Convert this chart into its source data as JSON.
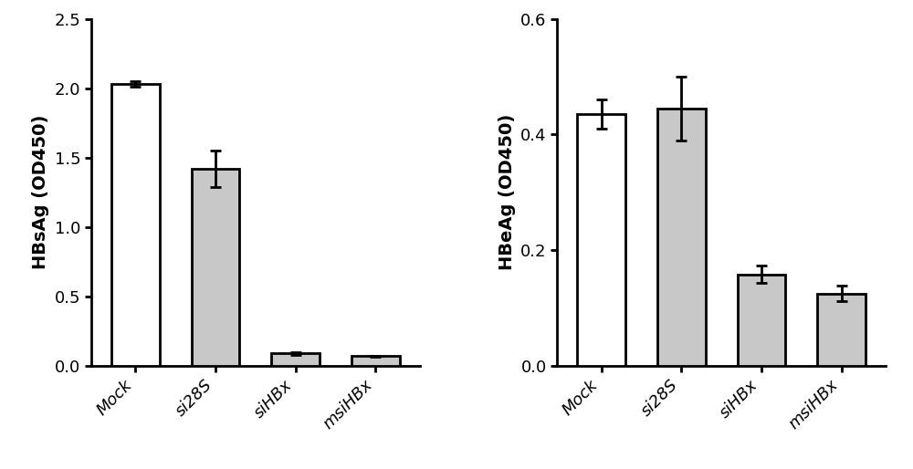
{
  "left_chart": {
    "ylabel": "HBsAg (OD450)",
    "categories": [
      "Mock",
      "si28S",
      "siHBx",
      "msiHBx"
    ],
    "values": [
      2.03,
      1.42,
      0.09,
      0.07
    ],
    "errors": [
      0.02,
      0.13,
      0.01,
      0.005
    ],
    "bar_colors": [
      "#ffffff",
      "#c8c8c8",
      "#c8c8c8",
      "#c8c8c8"
    ],
    "bar_edgecolors": [
      "#000000",
      "#000000",
      "#000000",
      "#000000"
    ],
    "ylim": [
      0,
      2.5
    ],
    "yticks": [
      0.0,
      0.5,
      1.0,
      1.5,
      2.0,
      2.5
    ]
  },
  "right_chart": {
    "ylabel": "HBeAg (OD450)",
    "categories": [
      "Mock",
      "si28S",
      "siHBx",
      "msiHBx"
    ],
    "values": [
      0.435,
      0.445,
      0.158,
      0.125
    ],
    "errors": [
      0.025,
      0.055,
      0.015,
      0.013
    ],
    "bar_colors": [
      "#ffffff",
      "#c8c8c8",
      "#c8c8c8",
      "#c8c8c8"
    ],
    "bar_edgecolors": [
      "#000000",
      "#000000",
      "#000000",
      "#000000"
    ],
    "ylim": [
      0,
      0.6
    ],
    "yticks": [
      0.0,
      0.2,
      0.4,
      0.6
    ]
  },
  "bar_width": 0.6,
  "figure_width": 10.0,
  "figure_height": 5.14,
  "dpi": 100,
  "tick_label_fontsize": 13,
  "axis_label_fontsize": 14,
  "label_rotation": 45,
  "capsize": 4,
  "linewidth": 2.0,
  "background_color": "#ffffff"
}
